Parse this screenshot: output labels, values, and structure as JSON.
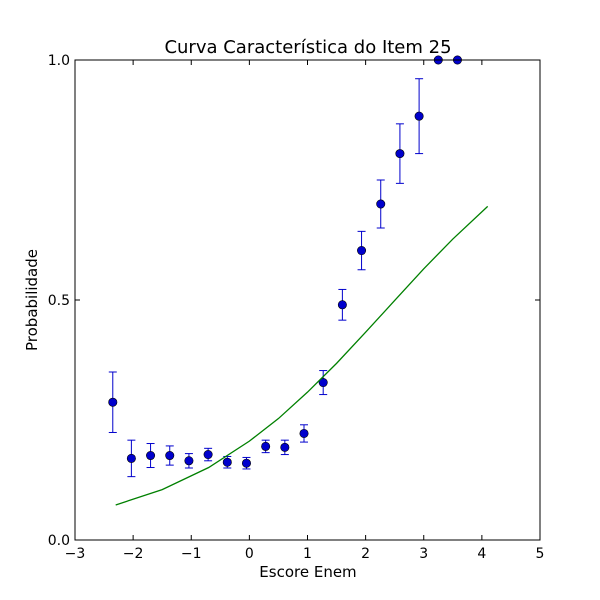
{
  "chart_data": {
    "type": "scatter",
    "title": "Curva Característica do Item 25",
    "xlabel": "Escore Enem",
    "ylabel": "Probabilidade",
    "xlim": [
      -3,
      5
    ],
    "ylim": [
      0,
      1
    ],
    "xticks": [
      -3,
      -2,
      -1,
      0,
      1,
      2,
      3,
      4,
      5
    ],
    "xtick_labels": [
      "−3",
      "−2",
      "−1",
      "0",
      "1",
      "2",
      "3",
      "4",
      "5"
    ],
    "yticks": [
      0,
      0.5,
      1
    ],
    "ytick_labels": [
      "0.0",
      "0.5",
      "1.0"
    ],
    "grid": false,
    "legend": "none",
    "series": [
      {
        "kind": "errorbar",
        "color": "#0000cc",
        "points": [
          {
            "x": -2.35,
            "y": 0.287,
            "err": 0.063
          },
          {
            "x": -2.03,
            "y": 0.17,
            "err": 0.038
          },
          {
            "x": -1.7,
            "y": 0.176,
            "err": 0.025
          },
          {
            "x": -1.37,
            "y": 0.176,
            "err": 0.02
          },
          {
            "x": -1.04,
            "y": 0.165,
            "err": 0.015
          },
          {
            "x": -0.71,
            "y": 0.178,
            "err": 0.013
          },
          {
            "x": -0.38,
            "y": 0.162,
            "err": 0.012
          },
          {
            "x": -0.05,
            "y": 0.16,
            "err": 0.012
          },
          {
            "x": 0.28,
            "y": 0.195,
            "err": 0.013
          },
          {
            "x": 0.61,
            "y": 0.193,
            "err": 0.015
          },
          {
            "x": 0.94,
            "y": 0.222,
            "err": 0.018
          },
          {
            "x": 1.27,
            "y": 0.328,
            "err": 0.025
          },
          {
            "x": 1.6,
            "y": 0.49,
            "err": 0.032
          },
          {
            "x": 1.93,
            "y": 0.603,
            "err": 0.04
          },
          {
            "x": 2.26,
            "y": 0.7,
            "err": 0.05
          },
          {
            "x": 2.59,
            "y": 0.805,
            "err": 0.062
          },
          {
            "x": 2.92,
            "y": 0.883,
            "err": 0.078
          },
          {
            "x": 3.25,
            "y": 1.0,
            "err": 0.0
          },
          {
            "x": 3.58,
            "y": 1.0,
            "err": 0.0
          }
        ]
      },
      {
        "kind": "line",
        "color": "#008000",
        "x": [
          -2.3,
          -1.5,
          -0.7,
          0.0,
          0.5,
          1.0,
          1.5,
          2.0,
          2.5,
          3.0,
          3.5,
          4.1
        ],
        "y": [
          0.073,
          0.105,
          0.151,
          0.206,
          0.253,
          0.308,
          0.368,
          0.433,
          0.499,
          0.565,
          0.627,
          0.695
        ]
      }
    ]
  }
}
